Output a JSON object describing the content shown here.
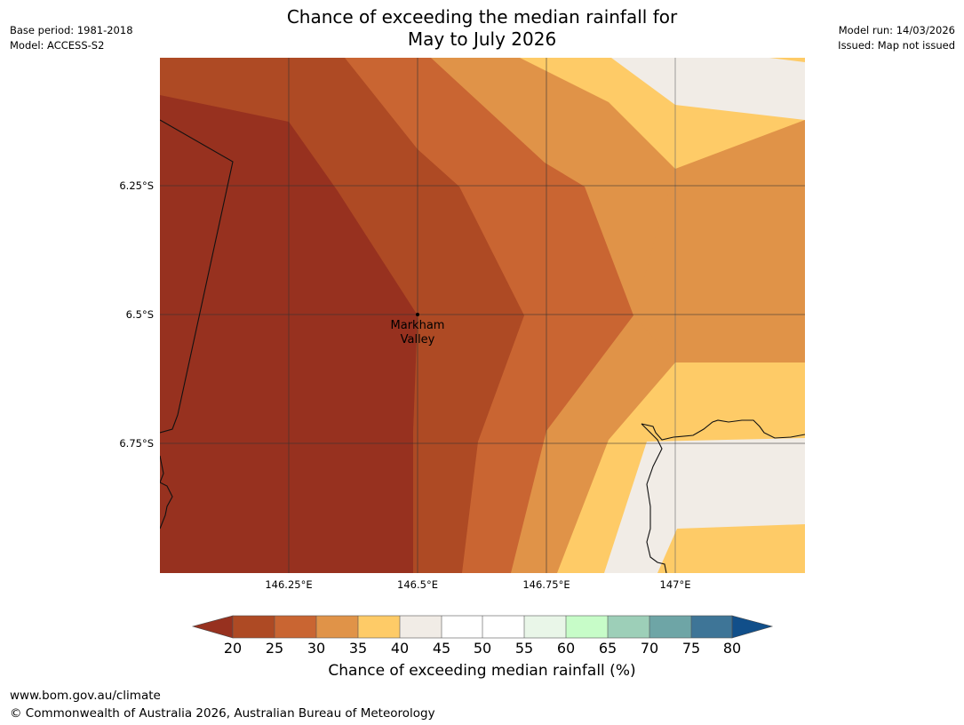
{
  "header": {
    "title_line1": "Chance of exceeding the median rainfall for",
    "title_line2": "May to July 2026",
    "base_period": "Base period: 1981-2018",
    "model": "Model: ACCESS-S2",
    "model_run": "Model run: 14/03/2026",
    "issued": "Issued: Map not issued"
  },
  "map": {
    "lat_labels": [
      "6.25°S",
      "6.5°S",
      "6.75°S"
    ],
    "lon_labels": [
      "146.25°E",
      "146.5°E",
      "146.75°E",
      "147°E"
    ],
    "place": {
      "name_line1": "Markham",
      "name_line2": "Valley"
    }
  },
  "colorbar": {
    "title": "Chance of exceeding median rainfall (%)",
    "ticks": [
      "20",
      "25",
      "30",
      "35",
      "40",
      "45",
      "50",
      "55",
      "60",
      "65",
      "70",
      "75",
      "80"
    ],
    "colors": {
      "below_20": "#97311f",
      "20_25": "#ae4a24",
      "25_30": "#c96532",
      "30_35": "#e09348",
      "35_40": "#fecb67",
      "40_45": "#f1ece6",
      "45_50": "#ffffff",
      "50_55": "#ffffff",
      "55_60": "#e9f6e8",
      "60_65": "#c7fcc8",
      "65_70": "#9dcfb8",
      "70_75": "#6ea5a6",
      "75_80": "#3e7597",
      "above_80": "#114f8a"
    }
  },
  "footer": {
    "url": "www.bom.gov.au/climate",
    "copyright": "© Commonwealth of Australia 2026, Australian Bureau of Meteorology"
  }
}
